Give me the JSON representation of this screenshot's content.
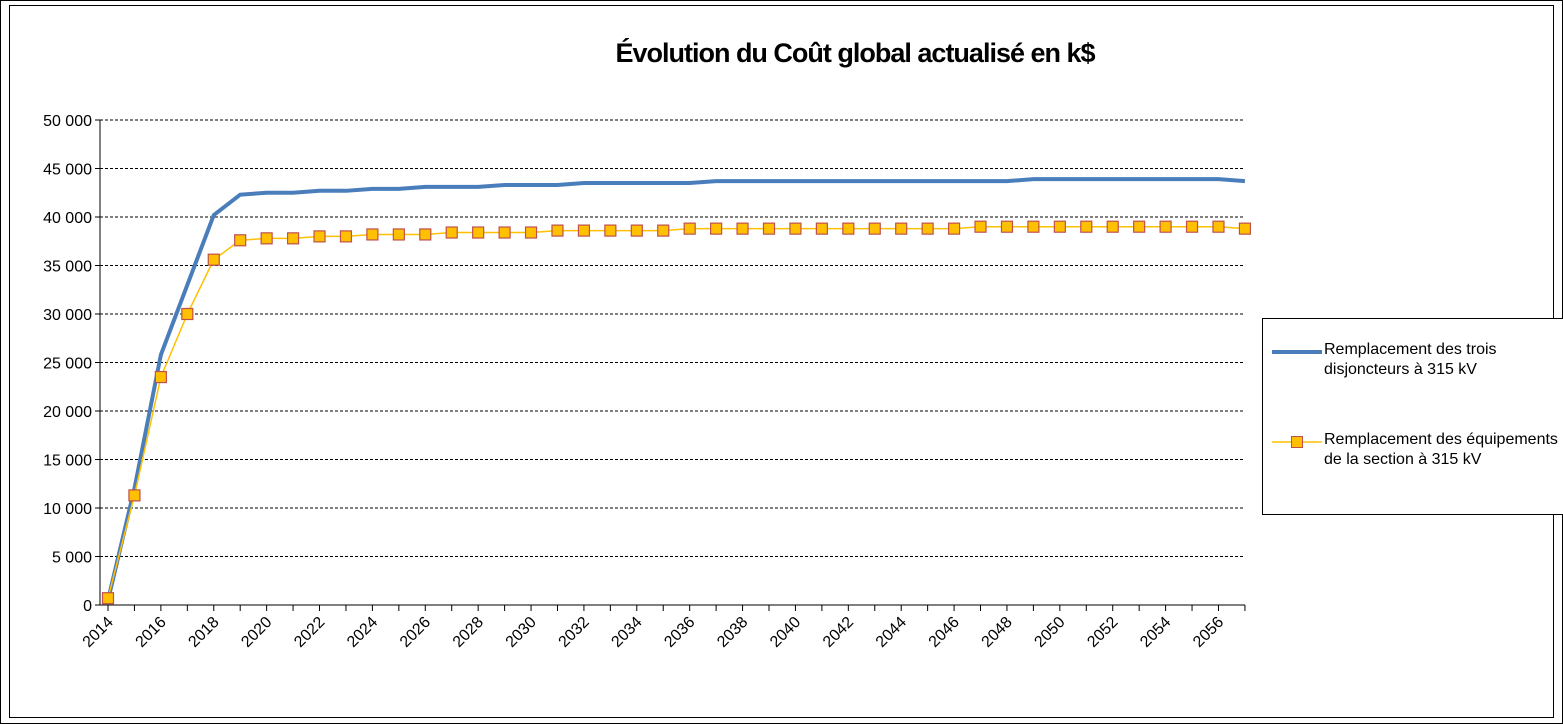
{
  "chart_data": {
    "type": "line",
    "title": "Évolution du Coût global actualisé en k$",
    "categories": [
      "2014",
      null,
      "2016",
      null,
      "2018",
      null,
      "2020",
      null,
      "2022",
      null,
      "2024",
      null,
      "2026",
      null,
      "2028",
      null,
      "2030",
      null,
      "2032",
      null,
      "2034",
      null,
      "2036",
      null,
      "2038",
      null,
      "2040",
      null,
      "2042",
      null,
      "2044",
      null,
      "2046",
      null,
      "2048",
      null,
      "2050",
      null,
      "2052",
      null,
      "2054",
      null,
      "2056",
      null
    ],
    "series": [
      {
        "name": "Remplacement des trois disjoncteurs à 315 kV",
        "color": "#4a7ebb",
        "marker": "none",
        "values": [
          500,
          12000,
          25800,
          33000,
          40200,
          42300,
          42500,
          42500,
          42700,
          42700,
          42900,
          42900,
          43100,
          43100,
          43100,
          43300,
          43300,
          43300,
          43500,
          43500,
          43500,
          43500,
          43500,
          43700,
          43700,
          43700,
          43700,
          43700,
          43700,
          43700,
          43700,
          43700,
          43700,
          43700,
          43700,
          43900,
          43900,
          43900,
          43900,
          43900,
          43900,
          43900,
          43900,
          43700
        ]
      },
      {
        "name": "Remplacement des équipements de la section à 315 kV",
        "color": "#ffc000",
        "marker": "square",
        "marker_edge": "#c0504d",
        "values": [
          700,
          11300,
          23500,
          30000,
          35600,
          37600,
          37800,
          37800,
          38000,
          38000,
          38200,
          38200,
          38200,
          38400,
          38400,
          38400,
          38400,
          38600,
          38600,
          38600,
          38600,
          38600,
          38800,
          38800,
          38800,
          38800,
          38800,
          38800,
          38800,
          38800,
          38800,
          38800,
          38800,
          39000,
          39000,
          39000,
          39000,
          39000,
          39000,
          39000,
          39000,
          39000,
          39000,
          38800
        ]
      }
    ],
    "ylim": [
      0,
      50000
    ],
    "yticks": [
      {
        "value": 0,
        "label": "0"
      },
      {
        "value": 5000,
        "label": "5 000"
      },
      {
        "value": 10000,
        "label": "10 000"
      },
      {
        "value": 15000,
        "label": "15 000"
      },
      {
        "value": 20000,
        "label": "20 000"
      },
      {
        "value": 25000,
        "label": "25 000"
      },
      {
        "value": 30000,
        "label": "30 000"
      },
      {
        "value": 35000,
        "label": "35 000"
      },
      {
        "value": 40000,
        "label": "40 000"
      },
      {
        "value": 45000,
        "label": "45 000"
      },
      {
        "value": 50000,
        "label": "50 000"
      }
    ],
    "grid": true,
    "legend": "right"
  }
}
